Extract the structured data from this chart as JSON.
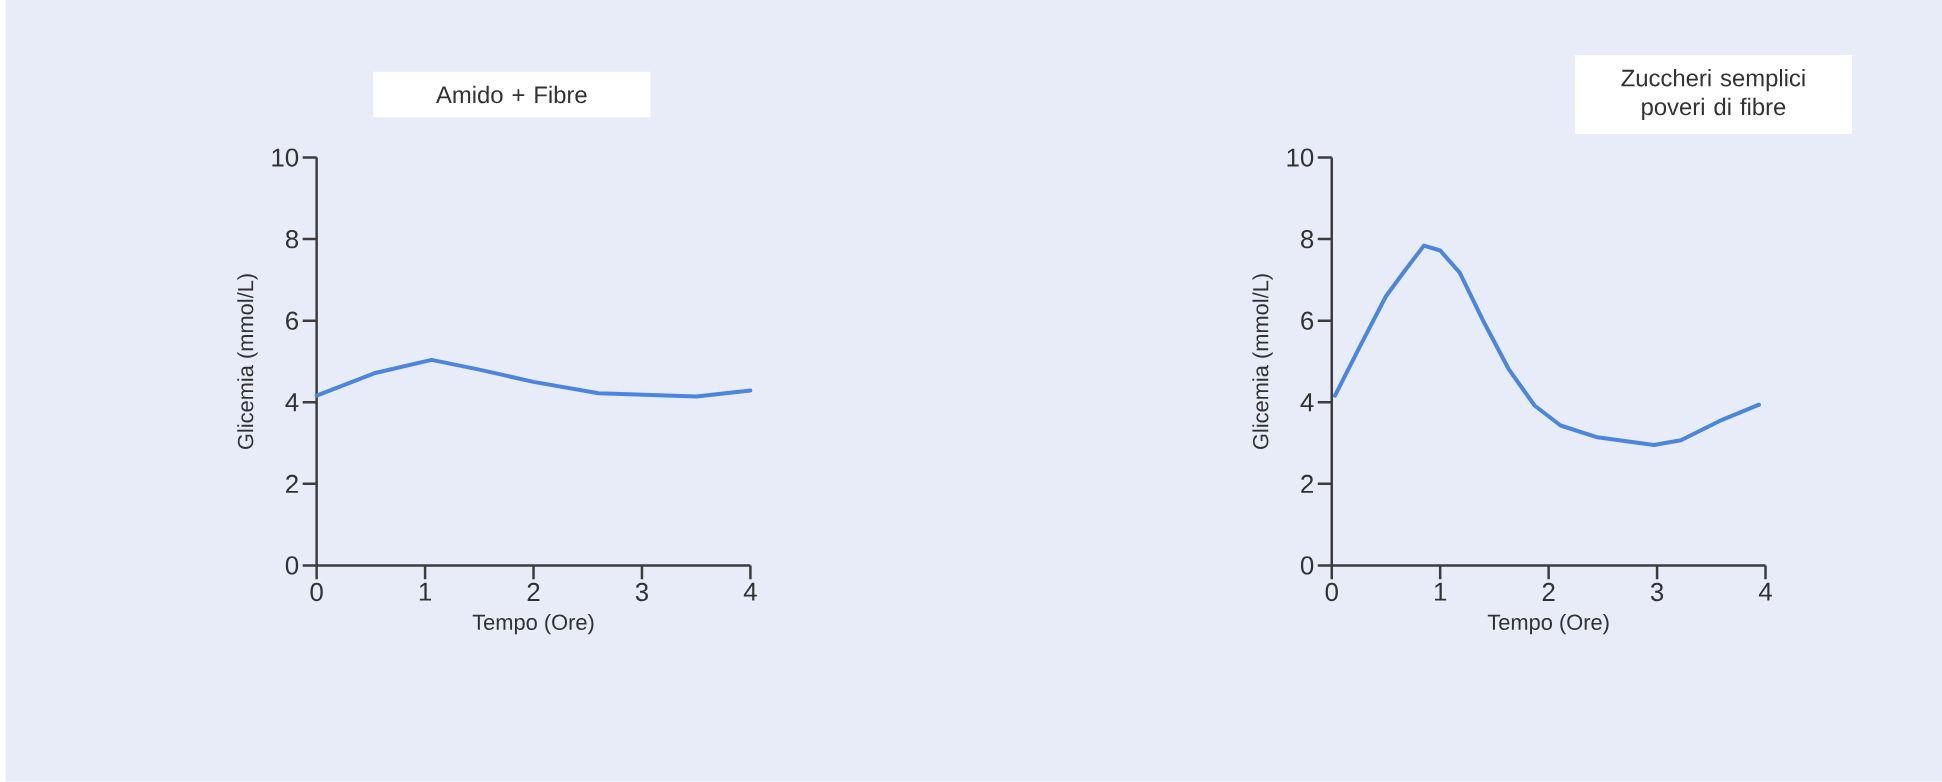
{
  "chart_data": [
    {
      "type": "line",
      "title": "Amido + Fibre",
      "xlabel": "Tempo (Ore)",
      "ylabel": "Glicemia (mmol/L)",
      "color": "#4a86e0",
      "x": [
        0,
        0.53,
        1.06,
        1.5,
        2,
        2.6,
        3.05,
        3.5,
        4
      ],
      "values": [
        4.16,
        4.71,
        5.04,
        4.8,
        4.5,
        4.22,
        4.18,
        4.14,
        4.29
      ],
      "xlim": [
        0,
        4
      ],
      "ylim": [
        0,
        10
      ],
      "xticks": [
        0,
        1,
        2,
        3,
        4
      ],
      "yticks": [
        0,
        2,
        4,
        6,
        8,
        10
      ]
    },
    {
      "type": "line",
      "title": "Zuccheri semplici poveri di fibre",
      "xlabel": "Tempo (Ore)",
      "ylabel": "Glicemia (mmol/L)",
      "color": "#4a86e0",
      "x": [
        0.03,
        0.26,
        0.5,
        0.68,
        0.85,
        1.0,
        1.18,
        1.39,
        1.63,
        1.87,
        2.11,
        2.45,
        2.97,
        3.22,
        3.6,
        3.94
      ],
      "values": [
        4.16,
        5.37,
        6.6,
        7.25,
        7.84,
        7.72,
        7.18,
        6.03,
        4.82,
        3.92,
        3.43,
        3.14,
        2.95,
        3.07,
        3.57,
        3.94
      ],
      "xlim": [
        0,
        4
      ],
      "ylim": [
        0,
        10
      ],
      "xticks": [
        0,
        1,
        2,
        3,
        4
      ],
      "yticks": [
        0,
        2,
        4,
        6,
        8,
        10
      ]
    }
  ]
}
